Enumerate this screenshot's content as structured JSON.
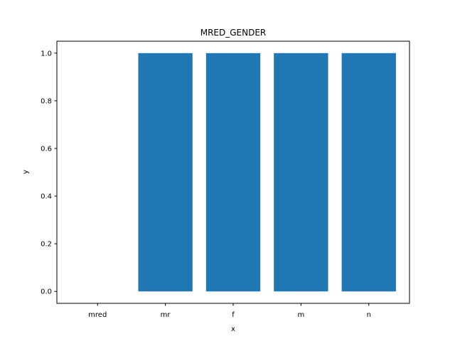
{
  "chart_data": {
    "type": "bar",
    "title": "MRED_GENDER",
    "xlabel": "x",
    "ylabel": "y",
    "categories": [
      "mred",
      "mr",
      "f",
      "m",
      "n"
    ],
    "values": [
      0,
      1,
      1,
      1,
      1
    ],
    "ylim": [
      -0.05,
      1.05
    ],
    "yticks": [
      0.0,
      0.2,
      0.4,
      0.6,
      0.8,
      1.0
    ],
    "ytick_labels": [
      "0.0",
      "0.2",
      "0.4",
      "0.6",
      "0.8",
      "1.0"
    ],
    "grid": false,
    "bar_color": "#1f77b4"
  }
}
